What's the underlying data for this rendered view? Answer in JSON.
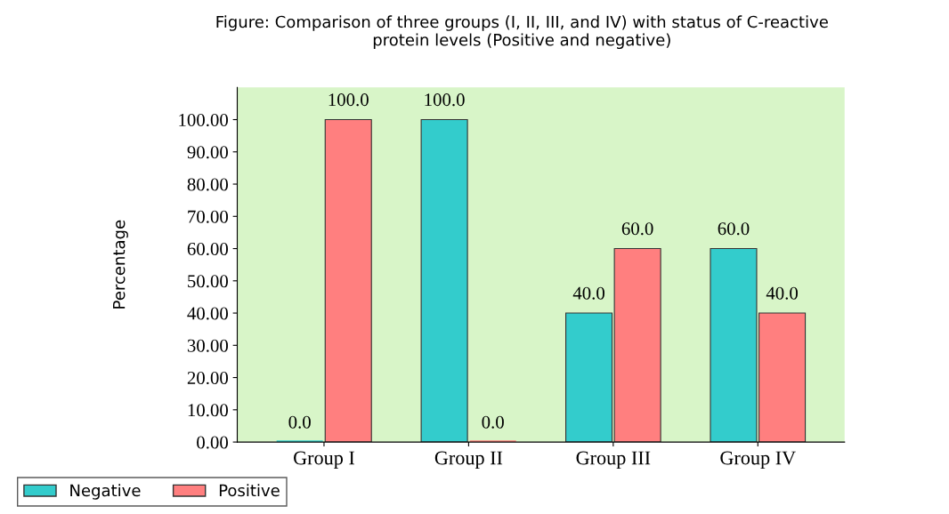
{
  "chart_data": {
    "type": "bar",
    "title": "Figure: Comparison of three groups (I, II, III, and IV) with status of C-reactive\nprotein levels (Positive and negative)",
    "ylabel": "Percentage",
    "categories": [
      "Group I",
      "Group II",
      "Group III",
      "Group IV"
    ],
    "series": [
      {
        "name": "Negative",
        "color": "#33cccc",
        "values": [
          0,
          100,
          40,
          60
        ],
        "value_labels": [
          "0.0",
          "100.0",
          "40.0",
          "60.0"
        ]
      },
      {
        "name": "Positive",
        "color": "#ff7f7f",
        "values": [
          100,
          0,
          60,
          40
        ],
        "value_labels": [
          "100.0",
          "0.0",
          "60.0",
          "40.0"
        ]
      }
    ],
    "ylim": [
      0,
      110
    ],
    "yticks": [
      {
        "value": 0,
        "label": "0.00"
      },
      {
        "value": 10,
        "label": "10.00"
      },
      {
        "value": 20,
        "label": "20.00"
      },
      {
        "value": 30,
        "label": "30.00"
      },
      {
        "value": 40,
        "label": "40.00"
      },
      {
        "value": 50,
        "label": "50.00"
      },
      {
        "value": 60,
        "label": "60.00"
      },
      {
        "value": 70,
        "label": "70.00"
      },
      {
        "value": 80,
        "label": "80.00"
      },
      {
        "value": 90,
        "label": "90.00"
      },
      {
        "value": 100,
        "label": "100.00"
      }
    ],
    "grid": false,
    "legend": "bottom left"
  }
}
